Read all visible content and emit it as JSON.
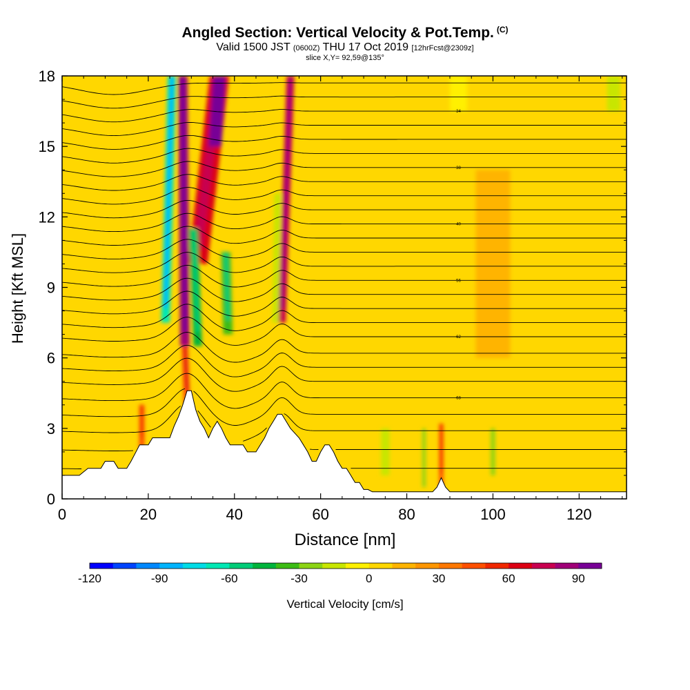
{
  "header": {
    "title": "Angled Section: Vertical Velocity & Pot.Temp.",
    "title_tag": "(C)",
    "line2_valid": "Valid 1500 JST",
    "line2_utc": "(0600Z)",
    "line2_date": "THU 17 Oct 2019",
    "line2_fcst": "[12hrFcst@2309z]",
    "line3": "slice X,Y= 92,59@135°"
  },
  "chart_data": {
    "type": "heatmap",
    "title": "Angled Section: Vertical Velocity & Pot.Temp.",
    "xlabel": "Distance [nm]",
    "ylabel": "Height [Kft MSL]",
    "xlim": [
      0,
      131
    ],
    "ylim": [
      0,
      18
    ],
    "x_ticks": [
      0,
      20,
      40,
      60,
      80,
      100,
      120
    ],
    "y_ticks": [
      0,
      3,
      6,
      9,
      12,
      15,
      18
    ],
    "grid": false,
    "colorbar": {
      "label": "Vertical Velocity [cm/s]",
      "min": -120,
      "max": 100,
      "step": 10,
      "ticks": [
        -120,
        -90,
        -60,
        -30,
        0,
        30,
        60,
        90
      ],
      "colors": [
        "#0000ff",
        "#0044ff",
        "#0088ff",
        "#00b4ff",
        "#00dce6",
        "#00e8b4",
        "#00cc78",
        "#00b43c",
        "#3cbc14",
        "#8cd414",
        "#c8e600",
        "#fff000",
        "#ffd700",
        "#ffb400",
        "#ff9600",
        "#ff7800",
        "#ff5000",
        "#f02800",
        "#dc0014",
        "#c80050",
        "#a00078",
        "#780096"
      ]
    },
    "terrain": {
      "x": [
        0,
        4,
        6,
        9,
        10,
        12,
        13,
        15,
        16,
        18,
        20,
        21,
        25,
        26,
        27,
        28,
        29,
        30,
        31,
        32,
        33,
        34,
        35,
        36,
        37,
        38,
        39,
        40,
        42,
        43,
        44,
        45,
        46,
        47,
        48,
        49,
        50,
        51,
        52,
        53,
        55,
        56,
        57,
        58,
        59,
        60,
        61,
        62,
        63,
        64,
        65,
        66,
        67,
        68,
        69,
        70,
        71,
        72,
        80,
        86,
        87,
        88,
        89,
        90,
        131
      ],
      "height_kft": [
        1.0,
        1.0,
        1.3,
        1.3,
        1.6,
        1.6,
        1.3,
        1.3,
        1.6,
        2.3,
        2.3,
        2.6,
        2.6,
        3.1,
        3.5,
        4.0,
        4.6,
        4.6,
        3.8,
        3.3,
        3.0,
        2.6,
        3.0,
        3.3,
        3.0,
        2.6,
        2.3,
        2.3,
        2.3,
        2.0,
        2.0,
        2.0,
        2.3,
        2.6,
        3.0,
        3.3,
        3.6,
        3.6,
        3.3,
        3.0,
        2.6,
        2.3,
        2.0,
        1.6,
        1.6,
        2.0,
        2.3,
        2.3,
        2.0,
        1.6,
        1.3,
        1.3,
        1.0,
        0.7,
        0.7,
        0.4,
        0.4,
        0.3,
        0.3,
        0.3,
        0.5,
        0.9,
        0.5,
        0.3,
        0.3
      ]
    },
    "velocity_features": [
      {
        "x_center": 24.5,
        "z_bottom": 7.5,
        "z_top": 18.0,
        "x_top": 25.5,
        "x_bottom": 24.0,
        "width_nm": 2.0,
        "velocity_cm_s": -70
      },
      {
        "x_center": 28.5,
        "z_bottom": 6.5,
        "z_top": 18.0,
        "x_top": 28.0,
        "x_bottom": 28.5,
        "width_nm": 2.2,
        "velocity_cm_s": 85
      },
      {
        "x_center": 33.0,
        "z_bottom": 10.0,
        "z_top": 18.0,
        "x_top": 36.5,
        "x_bottom": 31.5,
        "width_nm": 4.5,
        "velocity_cm_s": 60
      },
      {
        "x_center": 36.0,
        "z_bottom": 15.0,
        "z_top": 18.0,
        "x_top": 36.5,
        "x_bottom": 35.5,
        "width_nm": 3.0,
        "velocity_cm_s": 100
      },
      {
        "x_center": 31.5,
        "z_bottom": 6.5,
        "z_top": 11.5,
        "x_top": 30.5,
        "x_bottom": 31.5,
        "width_nm": 2.0,
        "velocity_cm_s": -45
      },
      {
        "x_center": 38.5,
        "z_bottom": 7.0,
        "z_top": 10.5,
        "x_top": 38.0,
        "x_bottom": 38.5,
        "width_nm": 2.2,
        "velocity_cm_s": -40
      },
      {
        "x_center": 51.5,
        "z_bottom": 7.5,
        "z_top": 18.0,
        "x_top": 53.0,
        "x_bottom": 51.0,
        "width_nm": 1.8,
        "velocity_cm_s": 70
      },
      {
        "x_center": 49.5,
        "z_bottom": 7.5,
        "z_top": 13.0,
        "x_top": 50.0,
        "x_bottom": 49.5,
        "width_nm": 1.5,
        "velocity_cm_s": -20
      },
      {
        "x_center": 28.5,
        "z_bottom": 4.0,
        "z_top": 6.5,
        "x_top": 28.5,
        "x_bottom": 29.0,
        "width_nm": 1.5,
        "velocity_cm_s": 45
      },
      {
        "x_center": 18.5,
        "z_bottom": 2.0,
        "z_top": 4.0,
        "x_top": 18.5,
        "x_bottom": 18.5,
        "width_nm": 1.2,
        "velocity_cm_s": 40
      },
      {
        "x_center": 88.0,
        "z_bottom": 0.5,
        "z_top": 3.2,
        "x_top": 88.0,
        "x_bottom": 88.0,
        "width_nm": 1.0,
        "velocity_cm_s": 40
      },
      {
        "x_center": 84.0,
        "z_bottom": 0.5,
        "z_top": 3.0,
        "x_top": 84.0,
        "x_bottom": 84.0,
        "width_nm": 0.8,
        "velocity_cm_s": -30
      },
      {
        "x_center": 75.0,
        "z_bottom": 1.0,
        "z_top": 3.0,
        "x_top": 75.0,
        "x_bottom": 75.0,
        "width_nm": 2.0,
        "velocity_cm_s": -20
      },
      {
        "x_center": 100.0,
        "z_bottom": 1.0,
        "z_top": 3.0,
        "x_top": 100.0,
        "x_bottom": 100.0,
        "width_nm": 1.0,
        "velocity_cm_s": -25
      },
      {
        "x_center": 102.0,
        "z_bottom": 9.0,
        "z_top": 12.0,
        "x_top": 102.0,
        "x_bottom": 102.0,
        "width_nm": 2.5,
        "velocity_cm_s": -10
      },
      {
        "x_center": 128.0,
        "z_bottom": 16.5,
        "z_top": 18.0,
        "x_top": 128.0,
        "x_bottom": 128.0,
        "width_nm": 3.0,
        "velocity_cm_s": -12
      },
      {
        "x_center": 92.0,
        "z_bottom": 16.5,
        "z_top": 18.0,
        "x_top": 92.0,
        "x_bottom": 92.0,
        "width_nm": 4.0,
        "velocity_cm_s": -10
      },
      {
        "x_center": 100.0,
        "z_bottom": 6.0,
        "z_top": 14.0,
        "x_top": 100.0,
        "x_bottom": 100.0,
        "width_nm": 8.0,
        "velocity_cm_s": 12
      }
    ],
    "isentropes_pot_temp_C": {
      "surface_values_at_x120_kft": [
        1.3,
        2.1,
        2.9,
        3.6,
        4.3,
        5.0,
        5.6,
        6.2,
        6.9,
        7.5,
        8.1,
        8.7,
        9.3,
        9.9,
        10.5,
        11.1,
        11.7,
        12.3,
        12.9,
        13.5,
        14.1,
        14.7,
        15.3,
        15.9,
        16.5,
        17.1,
        17.7
      ],
      "contour_labels": [
        "68",
        "62",
        "56",
        "40",
        "38",
        "34",
        "30",
        "28",
        "26"
      ]
    }
  }
}
